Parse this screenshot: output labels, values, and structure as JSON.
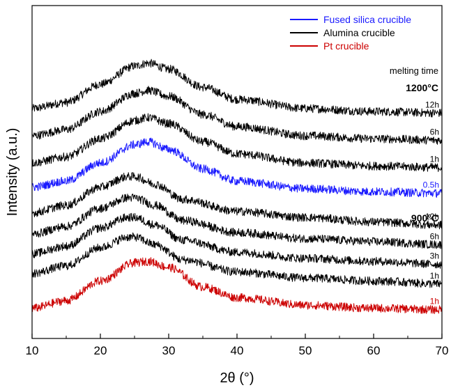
{
  "chart_data": {
    "type": "line",
    "xlabel": "2θ (°)",
    "ylabel": "Intensity (a.u.)",
    "xlim": [
      10,
      70
    ],
    "xticks": [
      "10",
      "20",
      "30",
      "40",
      "50",
      "60",
      "70"
    ],
    "grid": false,
    "legend_position": "top-right",
    "legend": [
      {
        "name": "Fused silica crucible",
        "color": "#1a1aff"
      },
      {
        "name": "Alumina crucible",
        "color": "#000000"
      },
      {
        "name": "Pt crucible",
        "color": "#cc0000"
      }
    ],
    "annotations": {
      "melting_time": "melting time",
      "group_1200": "1200°C",
      "group_900": "900°C"
    },
    "series": [
      {
        "label": "12h",
        "group": "1200°C",
        "crucible": "Alumina crucible",
        "color": "#000000",
        "x": [
          10,
          15,
          20,
          25,
          27,
          30,
          35,
          40,
          50,
          60,
          70
        ],
        "y": [
          7.1,
          7.3,
          7.9,
          8.5,
          8.6,
          8.4,
          7.8,
          7.4,
          7.1,
          7.0,
          6.95
        ]
      },
      {
        "label": "6h",
        "group": "1200°C",
        "crucible": "Alumina crucible",
        "color": "#000000",
        "x": [
          10,
          15,
          20,
          25,
          27,
          30,
          35,
          40,
          50,
          60,
          70
        ],
        "y": [
          6.2,
          6.4,
          7.0,
          7.6,
          7.7,
          7.5,
          6.9,
          6.5,
          6.2,
          6.1,
          6.05
        ]
      },
      {
        "label": "1h",
        "group": "1200°C",
        "crucible": "Alumina crucible",
        "color": "#000000",
        "x": [
          10,
          15,
          20,
          25,
          27,
          30,
          35,
          40,
          50,
          60,
          70
        ],
        "y": [
          5.3,
          5.5,
          6.1,
          6.7,
          6.8,
          6.6,
          6.0,
          5.6,
          5.3,
          5.2,
          5.15
        ]
      },
      {
        "label": "0.5h",
        "group": "1200°C",
        "crucible": "Fused silica crucible",
        "color": "#1a1aff",
        "x": [
          10,
          15,
          20,
          25,
          27,
          30,
          35,
          40,
          50,
          60,
          70
        ],
        "y": [
          4.5,
          4.7,
          5.3,
          5.9,
          6.0,
          5.75,
          5.1,
          4.7,
          4.45,
          4.35,
          4.3
        ]
      },
      {
        "label": "12h",
        "group": "900°C",
        "crucible": "Alumina crucible",
        "color": "#000000",
        "x": [
          10,
          15,
          20,
          24,
          25,
          28,
          32,
          40,
          50,
          60,
          70
        ],
        "y": [
          3.65,
          3.9,
          4.5,
          4.85,
          4.85,
          4.6,
          4.1,
          3.7,
          3.5,
          3.35,
          3.25
        ]
      },
      {
        "label": "6h",
        "group": "900°C",
        "crucible": "Alumina crucible",
        "color": "#000000",
        "x": [
          10,
          15,
          20,
          24,
          25,
          28,
          32,
          40,
          50,
          60,
          70
        ],
        "y": [
          2.95,
          3.2,
          3.8,
          4.15,
          4.15,
          3.9,
          3.4,
          3.0,
          2.8,
          2.7,
          2.6
        ]
      },
      {
        "label": "3h",
        "group": "900°C",
        "crucible": "Alumina crucible",
        "color": "#000000",
        "x": [
          10,
          15,
          20,
          24,
          25,
          28,
          32,
          40,
          50,
          60,
          70
        ],
        "y": [
          2.3,
          2.55,
          3.15,
          3.5,
          3.5,
          3.25,
          2.75,
          2.35,
          2.15,
          2.05,
          1.95
        ]
      },
      {
        "label": "1h",
        "group": "900°C",
        "crucible": "Alumina crucible",
        "color": "#000000",
        "x": [
          10,
          15,
          20,
          24,
          25,
          28,
          32,
          40,
          50,
          60,
          70
        ],
        "y": [
          1.65,
          1.9,
          2.5,
          2.85,
          2.85,
          2.6,
          2.1,
          1.7,
          1.5,
          1.4,
          1.3
        ]
      },
      {
        "label": "1h",
        "group": "900°C",
        "crucible": "Pt crucible",
        "color": "#cc0000",
        "x": [
          10,
          15,
          20,
          25,
          27,
          30,
          35,
          40,
          50,
          60,
          70
        ],
        "y": [
          0.5,
          0.75,
          1.4,
          2.0,
          2.05,
          1.85,
          1.2,
          0.85,
          0.6,
          0.5,
          0.45
        ]
      }
    ]
  }
}
